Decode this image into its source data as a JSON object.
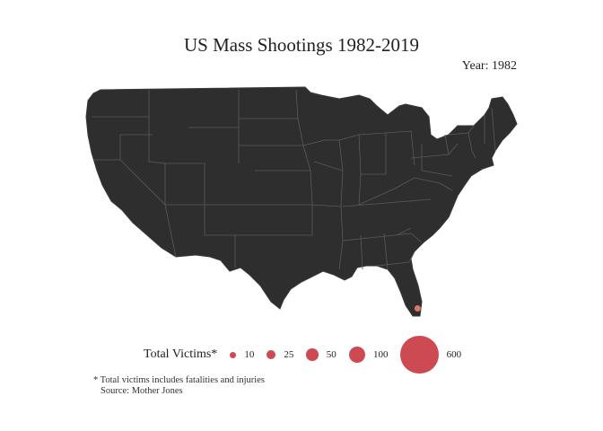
{
  "title": "US Mass Shootings 1982-2019",
  "year_label": "Year: 1982",
  "map": {
    "land_color": "#2e2e2e",
    "border_color": "#5a5a5a",
    "marker_color": "#e7826b",
    "incidents": [
      {
        "lat": 25.8,
        "lon": -80.3,
        "total_victims": 10
      }
    ]
  },
  "legend": {
    "title": "Total Victims*",
    "color": "#c8363f",
    "items": [
      {
        "label": "10",
        "value": 10
      },
      {
        "label": "25",
        "value": 25
      },
      {
        "label": "50",
        "value": 50
      },
      {
        "label": "100",
        "value": 100
      },
      {
        "label": "600",
        "value": 600
      }
    ]
  },
  "footnote": {
    "note": "* Total victims includes fatalities and injuries",
    "source": "Source: Mother Jones"
  }
}
